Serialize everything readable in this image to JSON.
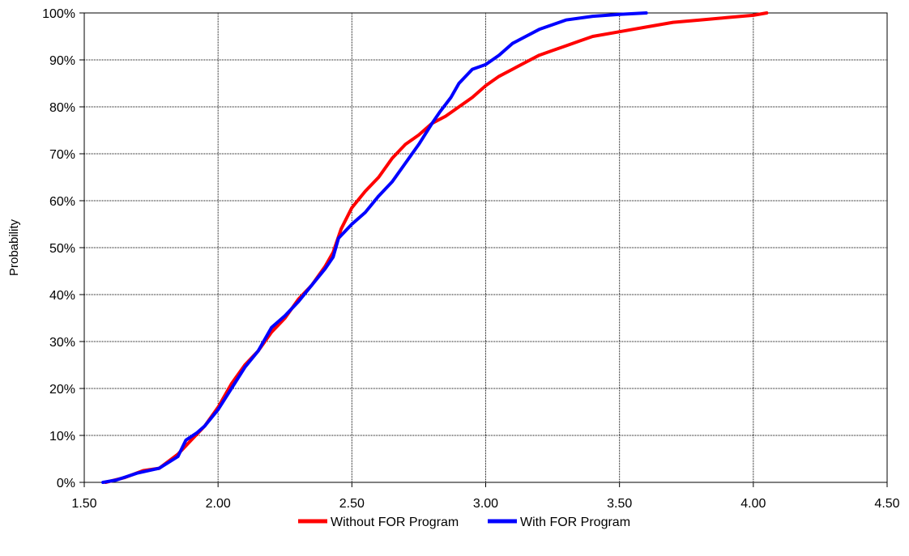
{
  "chart_data": {
    "type": "line",
    "title": "",
    "xlabel": "",
    "ylabel": "Probability",
    "xlim": [
      1.5,
      4.5
    ],
    "ylim": [
      0,
      1
    ],
    "x_ticks": [
      "1.50",
      "2.00",
      "2.50",
      "3.00",
      "3.50",
      "4.00",
      "4.50"
    ],
    "y_ticks": [
      "0%",
      "10%",
      "20%",
      "30%",
      "40%",
      "50%",
      "60%",
      "70%",
      "80%",
      "90%",
      "100%"
    ],
    "grid": true,
    "legend_position": "bottom",
    "series": [
      {
        "name": "Without FOR Program",
        "color": "#ff0000",
        "points": [
          [
            1.58,
            0.0
          ],
          [
            1.65,
            0.01
          ],
          [
            1.72,
            0.025
          ],
          [
            1.78,
            0.03
          ],
          [
            1.85,
            0.06
          ],
          [
            1.9,
            0.09
          ],
          [
            1.95,
            0.12
          ],
          [
            2.0,
            0.16
          ],
          [
            2.05,
            0.21
          ],
          [
            2.1,
            0.25
          ],
          [
            2.15,
            0.28
          ],
          [
            2.2,
            0.32
          ],
          [
            2.25,
            0.35
          ],
          [
            2.3,
            0.39
          ],
          [
            2.35,
            0.42
          ],
          [
            2.4,
            0.46
          ],
          [
            2.43,
            0.49
          ],
          [
            2.46,
            0.54
          ],
          [
            2.5,
            0.585
          ],
          [
            2.55,
            0.62
          ],
          [
            2.6,
            0.65
          ],
          [
            2.65,
            0.69
          ],
          [
            2.7,
            0.72
          ],
          [
            2.75,
            0.74
          ],
          [
            2.8,
            0.765
          ],
          [
            2.85,
            0.78
          ],
          [
            2.9,
            0.8
          ],
          [
            2.95,
            0.82
          ],
          [
            3.0,
            0.845
          ],
          [
            3.05,
            0.865
          ],
          [
            3.1,
            0.88
          ],
          [
            3.15,
            0.895
          ],
          [
            3.2,
            0.91
          ],
          [
            3.25,
            0.92
          ],
          [
            3.3,
            0.93
          ],
          [
            3.35,
            0.94
          ],
          [
            3.4,
            0.95
          ],
          [
            3.5,
            0.96
          ],
          [
            3.6,
            0.97
          ],
          [
            3.7,
            0.98
          ],
          [
            3.8,
            0.985
          ],
          [
            3.9,
            0.99
          ],
          [
            4.0,
            0.995
          ],
          [
            4.05,
            1.0
          ]
        ]
      },
      {
        "name": "With FOR Program",
        "color": "#0000ff",
        "points": [
          [
            1.57,
            0.0
          ],
          [
            1.62,
            0.005
          ],
          [
            1.7,
            0.02
          ],
          [
            1.78,
            0.03
          ],
          [
            1.85,
            0.055
          ],
          [
            1.88,
            0.09
          ],
          [
            1.92,
            0.105
          ],
          [
            1.95,
            0.12
          ],
          [
            2.0,
            0.155
          ],
          [
            2.05,
            0.2
          ],
          [
            2.1,
            0.245
          ],
          [
            2.15,
            0.28
          ],
          [
            2.2,
            0.33
          ],
          [
            2.25,
            0.355
          ],
          [
            2.3,
            0.385
          ],
          [
            2.35,
            0.42
          ],
          [
            2.4,
            0.455
          ],
          [
            2.43,
            0.48
          ],
          [
            2.45,
            0.52
          ],
          [
            2.5,
            0.55
          ],
          [
            2.55,
            0.575
          ],
          [
            2.6,
            0.61
          ],
          [
            2.65,
            0.64
          ],
          [
            2.7,
            0.68
          ],
          [
            2.75,
            0.72
          ],
          [
            2.8,
            0.765
          ],
          [
            2.83,
            0.79
          ],
          [
            2.87,
            0.82
          ],
          [
            2.9,
            0.85
          ],
          [
            2.95,
            0.88
          ],
          [
            3.0,
            0.89
          ],
          [
            3.05,
            0.91
          ],
          [
            3.1,
            0.935
          ],
          [
            3.15,
            0.95
          ],
          [
            3.2,
            0.965
          ],
          [
            3.25,
            0.975
          ],
          [
            3.3,
            0.985
          ],
          [
            3.4,
            0.993
          ],
          [
            3.5,
            0.997
          ],
          [
            3.6,
            1.0
          ]
        ]
      }
    ]
  }
}
